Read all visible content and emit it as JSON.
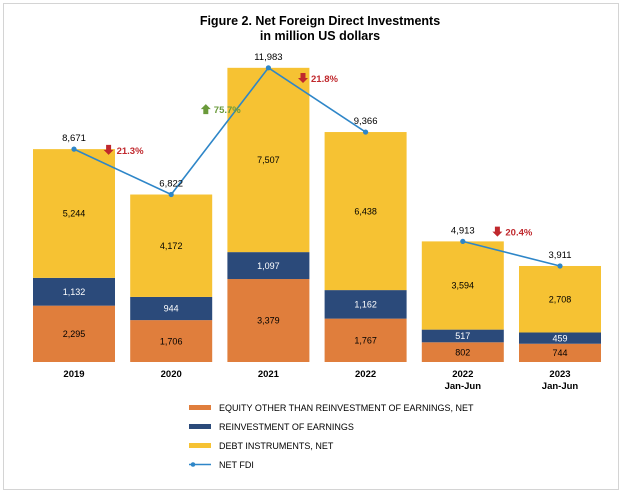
{
  "chart_data": {
    "type": "bar",
    "stacked": true,
    "title": "Figure 2. Net Foreign Direct Investments",
    "subtitle": "in million US dollars",
    "categories": [
      {
        "line1": "2019",
        "line2": ""
      },
      {
        "line1": "2020",
        "line2": ""
      },
      {
        "line1": "2021",
        "line2": ""
      },
      {
        "line1": "2022",
        "line2": ""
      },
      {
        "line1": "2022",
        "line2": "Jan-Jun"
      },
      {
        "line1": "2023",
        "line2": "Jan-Jun"
      }
    ],
    "series": [
      {
        "name": "EQUITY OTHER THAN REINVESTMENT OF EARNINGS, NET",
        "color": "#e07e3c",
        "values": [
          2295,
          1706,
          3379,
          1767,
          802,
          744
        ],
        "labels": [
          "2,295",
          "1,706",
          "3,379",
          "1,767",
          "802",
          "744"
        ]
      },
      {
        "name": "REINVESTMENT OF EARNINGS",
        "color": "#2b4a7a",
        "values": [
          1132,
          944,
          1097,
          1162,
          517,
          459
        ],
        "labels": [
          "1,132",
          "944",
          "1,097",
          "1,162",
          "517",
          "459"
        ]
      },
      {
        "name": "DEBT INSTRUMENTS, NET",
        "color": "#f6c233",
        "values": [
          5244,
          4172,
          7507,
          6438,
          3594,
          2708
        ],
        "labels": [
          "5,244",
          "4,172",
          "7,507",
          "6,438",
          "3,594",
          "2,708"
        ]
      }
    ],
    "net_fdi": {
      "name": "NET FDI",
      "color": "#2e86c8",
      "values": [
        8671,
        6822,
        11983,
        9366,
        4913,
        3911
      ],
      "labels": [
        "8,671",
        "6,822",
        "11,983",
        "9,366",
        "4,913",
        "3,911"
      ],
      "segments": [
        [
          0,
          3
        ],
        [
          4,
          5
        ]
      ]
    },
    "changes": [
      {
        "label": "21.3%",
        "direction": "down",
        "between": [
          0,
          1
        ],
        "color": "#c0282d"
      },
      {
        "label": "75.7%",
        "direction": "up",
        "between": [
          1,
          2
        ],
        "color": "#6a9a3a"
      },
      {
        "label": "21.8%",
        "direction": "down",
        "between": [
          2,
          3
        ],
        "color": "#c0282d"
      },
      {
        "label": "20.4%",
        "direction": "down",
        "between": [
          4,
          5
        ],
        "color": "#c0282d"
      }
    ],
    "ylim": [
      0,
      12000
    ],
    "grid": false,
    "legend_position": "bottom"
  }
}
